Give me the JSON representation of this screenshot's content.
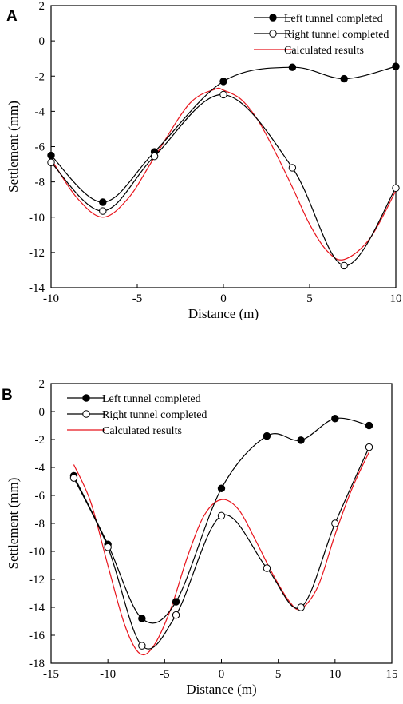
{
  "chart_data": [
    {
      "type": "line",
      "panel_label": "A",
      "xlabel": "Distance (m)",
      "ylabel": "Settlement (mm)",
      "xlim": [
        -10,
        10
      ],
      "ylim": [
        -14,
        2
      ],
      "xticks": [
        -10,
        -5,
        0,
        5,
        10
      ],
      "yticks": [
        -14,
        -12,
        -10,
        -8,
        -6,
        -4,
        -2,
        0,
        2
      ],
      "series": [
        {
          "name": "Left tunnel completed",
          "marker": "filled-circle",
          "color": "#000000",
          "x": [
            -10,
            -7,
            -4,
            0,
            4,
            7,
            10
          ],
          "y": [
            -6.5,
            -9.15,
            -6.3,
            -2.3,
            -1.5,
            -2.15,
            -1.45
          ]
        },
        {
          "name": "Right tunnel completed",
          "marker": "open-circle",
          "color": "#000000",
          "x": [
            -10,
            -7,
            -4,
            0,
            4,
            7,
            10
          ],
          "y": [
            -6.9,
            -9.65,
            -6.55,
            -3.05,
            -7.2,
            -12.75,
            -8.35
          ]
        },
        {
          "name": "Calculated results",
          "marker": "none",
          "color": "#e8141c",
          "x": [
            -10,
            -8.5,
            -7,
            -5.5,
            -4,
            -2,
            -0.5,
            0,
            1,
            2,
            3,
            4,
            5,
            6,
            7,
            8.5,
            10
          ],
          "y": [
            -6.7,
            -8.9,
            -10.0,
            -8.9,
            -6.6,
            -3.6,
            -2.75,
            -2.8,
            -3.3,
            -4.5,
            -6.3,
            -8.3,
            -10.4,
            -11.9,
            -12.4,
            -11.2,
            -8.5
          ]
        }
      ],
      "legend_position": "top-right"
    },
    {
      "type": "line",
      "panel_label": "B",
      "xlabel": "Distance (m)",
      "ylabel": "Settlement (mm)",
      "xlim": [
        -15,
        15
      ],
      "ylim": [
        -18,
        2
      ],
      "xticks": [
        -15,
        -10,
        -5,
        0,
        5,
        10,
        15
      ],
      "yticks": [
        -18,
        -16,
        -14,
        -12,
        -10,
        -8,
        -6,
        -4,
        -2,
        0,
        2
      ],
      "series": [
        {
          "name": "Left tunnel completed",
          "marker": "filled-circle",
          "color": "#000000",
          "x": [
            -13,
            -10,
            -7,
            -4,
            0,
            4,
            7,
            10,
            13
          ],
          "y": [
            -4.6,
            -9.5,
            -14.8,
            -13.6,
            -5.5,
            -1.75,
            -2.05,
            -0.5,
            -1.0
          ]
        },
        {
          "name": "Right tunnel completed",
          "marker": "open-circle",
          "color": "#000000",
          "x": [
            -13,
            -10,
            -7,
            -4,
            0,
            4,
            7,
            10,
            13
          ],
          "y": [
            -4.75,
            -9.7,
            -16.75,
            -14.55,
            -7.45,
            -11.2,
            -14.0,
            -8.0,
            -2.55
          ]
        },
        {
          "name": "Calculated results",
          "marker": "none",
          "color": "#e8141c",
          "x": [
            -13,
            -11.5,
            -10,
            -8.5,
            -7.2,
            -6,
            -4.5,
            -3,
            -1.5,
            0,
            1.5,
            3,
            4.5,
            6,
            7,
            8.5,
            10,
            11.5,
            13
          ],
          "y": [
            -3.8,
            -6.5,
            -11.0,
            -15.3,
            -17.3,
            -16.8,
            -14.2,
            -10.4,
            -7.4,
            -6.3,
            -7.0,
            -9.2,
            -11.6,
            -13.6,
            -14.1,
            -12.5,
            -8.8,
            -5.5,
            -2.9
          ]
        }
      ],
      "legend_position": "top-left"
    }
  ]
}
